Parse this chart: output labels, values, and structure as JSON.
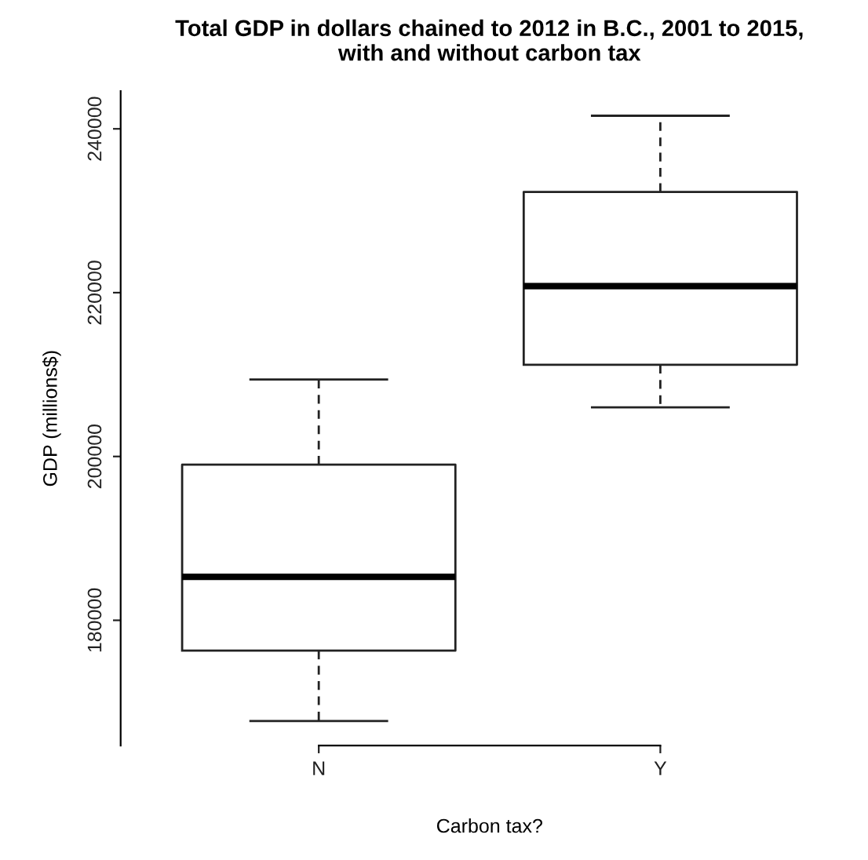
{
  "chart_data": {
    "type": "box",
    "title": "Total GDP in dollars chained to 2012 in B.C., 2001 to 2015,\nwith and without carbon tax",
    "xlabel": "Carbon tax?",
    "ylabel": "GDP (millions$)",
    "categories": [
      "N",
      "Y"
    ],
    "boxes": [
      {
        "low": 167700,
        "q1": 176300,
        "median": 185300,
        "q3": 199000,
        "high": 209400
      },
      {
        "low": 206000,
        "q1": 211200,
        "median": 220800,
        "q3": 232300,
        "high": 241600
      }
    ],
    "ylim": [
      164700,
      244600
    ],
    "yticks": [
      180000,
      200000,
      220000,
      240000
    ],
    "grid": false,
    "legend": false
  }
}
